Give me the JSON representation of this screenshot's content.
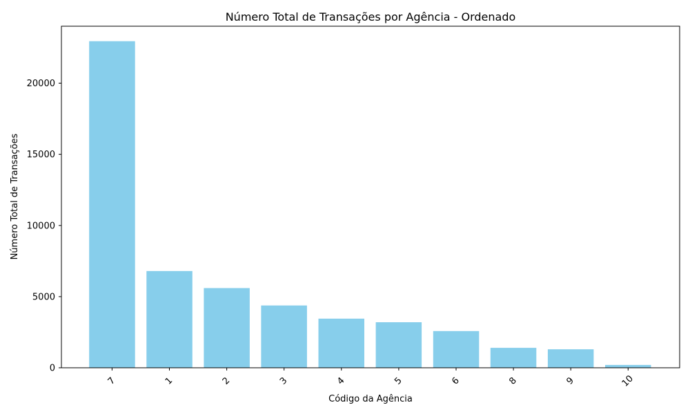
{
  "chart_data": {
    "type": "bar",
    "title": "Número Total de Transações por Agência - Ordenado",
    "xlabel": "Código da Agência",
    "ylabel": "Número Total de Transações",
    "categories": [
      "7",
      "1",
      "2",
      "3",
      "4",
      "5",
      "6",
      "8",
      "9",
      "10"
    ],
    "values": [
      22950,
      6800,
      5600,
      4380,
      3450,
      3200,
      2580,
      1400,
      1300,
      200
    ],
    "ylim": [
      0,
      24000
    ],
    "yticks": [
      0,
      5000,
      10000,
      15000,
      20000
    ],
    "ytick_labels": [
      "0",
      "5000",
      "10000",
      "15000",
      "20000"
    ],
    "bar_color": "#87CEEB",
    "grid": false,
    "legend": "none"
  }
}
